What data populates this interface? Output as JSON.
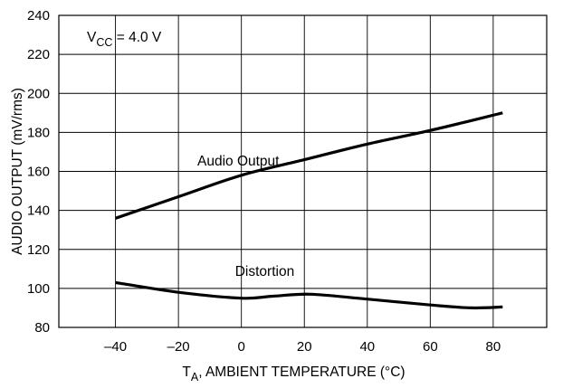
{
  "chart_data": {
    "type": "line",
    "title": "",
    "xlabel": {
      "main": "T",
      "sub": "A",
      "rest": ", AMBIENT TEMPERATURE (°C)"
    },
    "ylabel": "AUDIO OUTPUT (mV/rms)",
    "xlim": [
      -58,
      97
    ],
    "ylim": [
      80,
      240
    ],
    "xticks": [
      -40,
      -20,
      0,
      20,
      40,
      60,
      80
    ],
    "xtick_labels": [
      "–40",
      "–20",
      "0",
      "20",
      "40",
      "60",
      "80"
    ],
    "yticks": [
      80,
      100,
      120,
      140,
      160,
      180,
      200,
      220,
      240
    ],
    "ytick_labels": [
      "80",
      "100",
      "120",
      "140",
      "160",
      "180",
      "200",
      "220",
      "240"
    ],
    "grid": true,
    "grid_x": [
      -40,
      -20,
      0,
      20,
      40,
      60,
      80
    ],
    "grid_y": [
      80,
      100,
      120,
      140,
      160,
      180,
      200,
      220,
      240
    ],
    "annotation": {
      "main": "V",
      "sub": "CC",
      "rest": " = 4.0 V"
    },
    "series": [
      {
        "name": "Audio Output",
        "x": [
          -40,
          -20,
          0,
          20,
          40,
          60,
          83
        ],
        "y": [
          136,
          147,
          158,
          166,
          174,
          181,
          190
        ]
      },
      {
        "name": "Distortion",
        "x": [
          -40,
          -20,
          0,
          10,
          22,
          40,
          60,
          73,
          83
        ],
        "y": [
          103,
          98,
          95,
          96,
          97,
          94.5,
          91.5,
          90,
          90.5
        ]
      }
    ]
  }
}
